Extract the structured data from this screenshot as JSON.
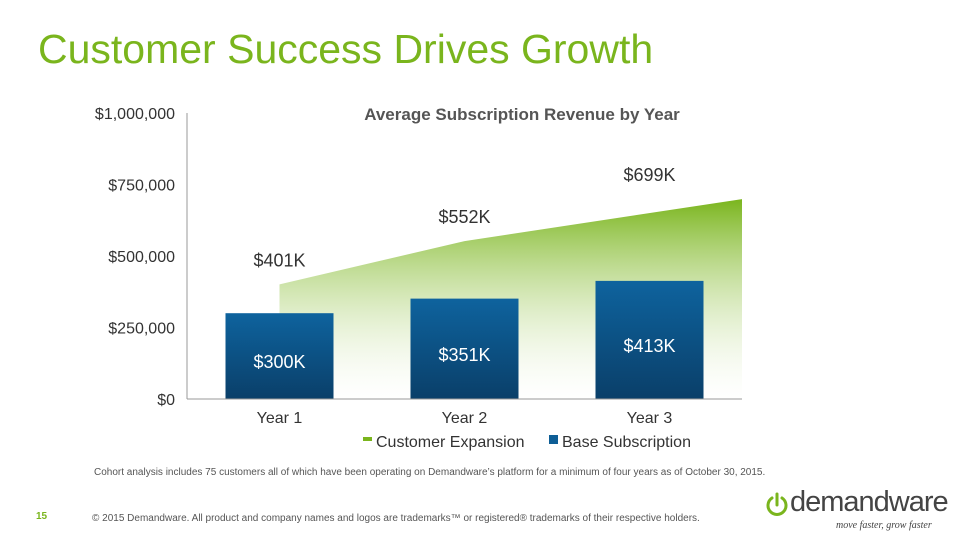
{
  "slide": {
    "title": "Customer Success Drives Growth",
    "page_number": "15",
    "footnote": "Cohort analysis includes 75 customers all of which have been operating on Demandware’s platform for a minimum of four years as of October 30, 2015.",
    "copyright": "© 2015 Demandware. All product and company names and logos are trademarks™ or registered® trademarks of their respective holders."
  },
  "logo": {
    "wordmark": "demandware",
    "tagline": "move faster, grow faster",
    "icon": "power-icon",
    "color": "#7ab51d"
  },
  "chart_data": {
    "type": "bar",
    "title": "Average Subscription Revenue by Year",
    "categories": [
      "Year 1",
      "Year 2",
      "Year 3"
    ],
    "ylim": [
      0,
      1000000
    ],
    "yticks": [
      "$0",
      "$250,000",
      "$500,000",
      "$750,000",
      "$1,000,000"
    ],
    "ytick_values": [
      0,
      250000,
      500000,
      750000,
      1000000
    ],
    "series": [
      {
        "name": "Base Subscription",
        "type": "bar",
        "color": "#0e5e96",
        "values": [
          300000,
          351000,
          413000
        ],
        "labels": [
          "$300K",
          "$351K",
          "$413K"
        ]
      },
      {
        "name": "Customer Expansion",
        "type": "area",
        "color": "#7ab51d",
        "values": [
          401000,
          552000,
          699000
        ],
        "labels": [
          "$401K",
          "$552K",
          "$699K"
        ]
      }
    ],
    "legend_position": "bottom",
    "grid": false
  }
}
